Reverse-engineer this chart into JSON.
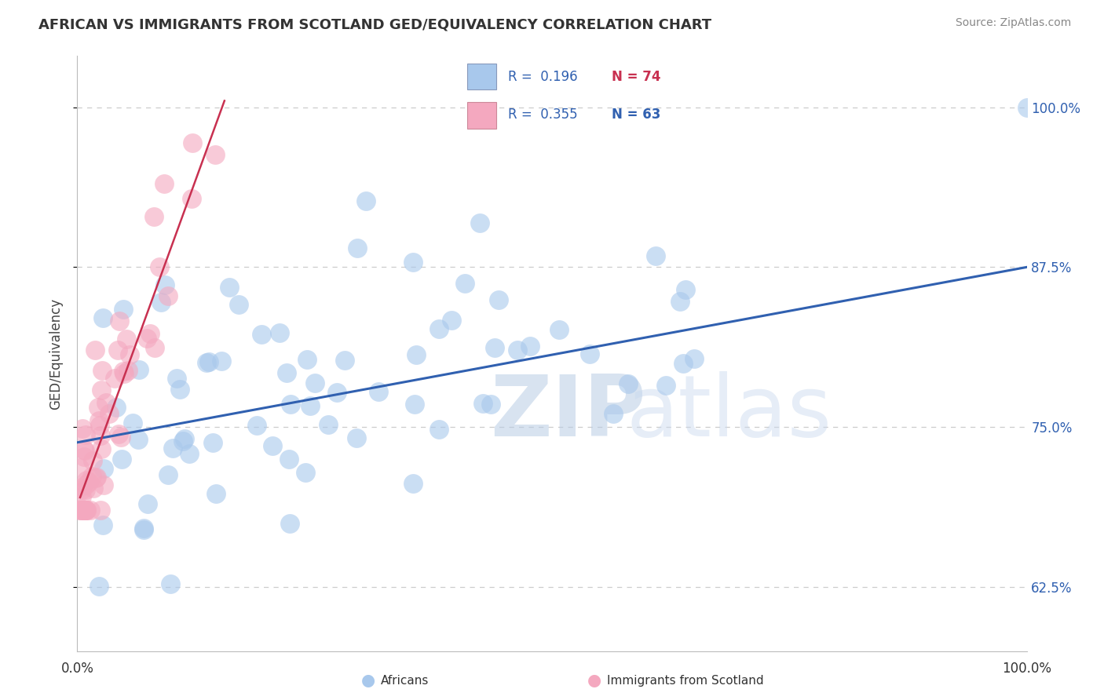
{
  "title": "AFRICAN VS IMMIGRANTS FROM SCOTLAND GED/EQUIVALENCY CORRELATION CHART",
  "source": "Source: ZipAtlas.com",
  "ylabel": "GED/Equivalency",
  "ytick_labels": [
    "62.5%",
    "75.0%",
    "87.5%",
    "100.0%"
  ],
  "ytick_values": [
    0.625,
    0.75,
    0.875,
    1.0
  ],
  "xlim": [
    0.0,
    1.0
  ],
  "ylim": [
    0.575,
    1.04
  ],
  "blue_color": "#A8C8EC",
  "pink_color": "#F4A8BF",
  "blue_line_color": "#3060B0",
  "pink_line_color": "#C83050",
  "watermark_zip": "ZIP",
  "watermark_atlas": "atlas",
  "background_color": "#FFFFFF",
  "grid_color": "#CCCCCC",
  "title_fontsize": 13,
  "blue_trend_x0": 0.0,
  "blue_trend_x1": 1.0,
  "blue_trend_y0": 0.738,
  "blue_trend_y1": 0.875,
  "pink_trend_x0": 0.003,
  "pink_trend_x1": 0.155,
  "pink_trend_y0": 0.695,
  "pink_trend_y1": 1.005
}
